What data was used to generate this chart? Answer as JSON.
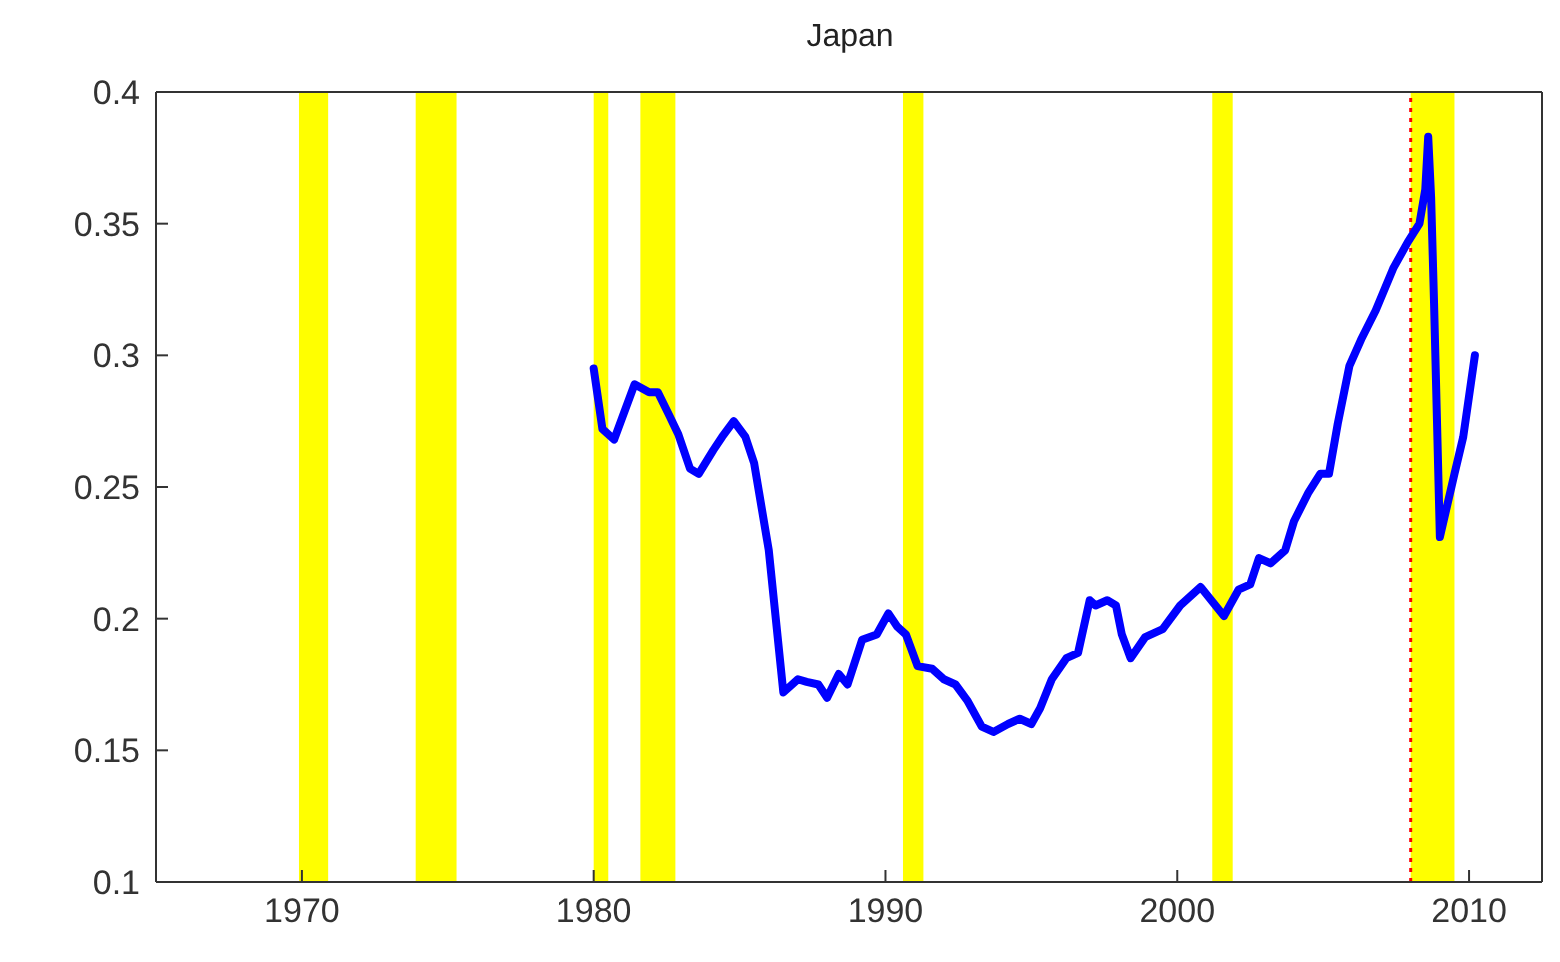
{
  "chart_data": {
    "type": "line",
    "title": "Japan",
    "xlim": [
      1965,
      2012.5
    ],
    "xticks": [
      1970,
      1980,
      1990,
      2000,
      2010
    ],
    "ylim": [
      0.1,
      0.4
    ],
    "yticks": [
      0.1,
      0.15,
      0.2,
      0.25,
      0.3,
      0.35,
      0.4
    ],
    "grid": false,
    "legend": false,
    "marker": "none",
    "line_style": "solid",
    "series": [
      {
        "color": "#0000ff",
        "x": [
          1980.0,
          1980.3,
          1980.7,
          1981.0,
          1981.4,
          1981.9,
          1982.2,
          1982.6,
          1982.9,
          1983.3,
          1983.6,
          1984.1,
          1984.4,
          1984.8,
          1985.2,
          1985.5,
          1986.0,
          1986.5,
          1987.0,
          1987.3,
          1987.7,
          1988.0,
          1988.4,
          1988.7,
          1989.2,
          1989.7,
          1990.1,
          1990.4,
          1990.7,
          1991.1,
          1991.6,
          1992.0,
          1992.4,
          1992.8,
          1993.3,
          1993.7,
          1994.2,
          1994.6,
          1995.0,
          1995.3,
          1995.7,
          1996.2,
          1996.6,
          1997.0,
          1997.2,
          1997.6,
          1997.9,
          1998.1,
          1998.4,
          1998.9,
          1999.5,
          2000.1,
          2000.8,
          2001.6,
          2002.1,
          2002.5,
          2002.8,
          2003.2,
          2003.7,
          2004.0,
          2004.5,
          2004.9,
          2005.2,
          2005.5,
          2005.9,
          2006.3,
          2006.8,
          2007.4,
          2007.9,
          2008.3,
          2008.5,
          2008.6,
          2008.7,
          2008.8,
          2009.0,
          2009.5,
          2009.8,
          2010.2
        ],
        "values": [
          0.295,
          0.272,
          0.268,
          0.277,
          0.289,
          0.286,
          0.286,
          0.277,
          0.27,
          0.257,
          0.255,
          0.264,
          0.269,
          0.275,
          0.269,
          0.259,
          0.226,
          0.172,
          0.177,
          0.176,
          0.175,
          0.17,
          0.179,
          0.175,
          0.192,
          0.194,
          0.202,
          0.197,
          0.194,
          0.182,
          0.181,
          0.177,
          0.175,
          0.169,
          0.159,
          0.157,
          0.16,
          0.162,
          0.16,
          0.166,
          0.177,
          0.185,
          0.187,
          0.207,
          0.205,
          0.207,
          0.205,
          0.194,
          0.185,
          0.193,
          0.196,
          0.205,
          0.212,
          0.201,
          0.211,
          0.213,
          0.223,
          0.221,
          0.226,
          0.237,
          0.248,
          0.255,
          0.255,
          0.274,
          0.296,
          0.306,
          0.317,
          0.333,
          0.343,
          0.35,
          0.363,
          0.383,
          0.36,
          0.32,
          0.231,
          0.255,
          0.269,
          0.3
        ]
      }
    ],
    "bands": [
      {
        "axis": "x",
        "from": 1969.9,
        "to": 1970.9,
        "color": "#ffff00"
      },
      {
        "axis": "x",
        "from": 1973.9,
        "to": 1975.3,
        "color": "#ffff00"
      },
      {
        "axis": "x",
        "from": 1980.0,
        "to": 1980.5,
        "color": "#ffff00"
      },
      {
        "axis": "x",
        "from": 1981.6,
        "to": 1982.8,
        "color": "#ffff00"
      },
      {
        "axis": "x",
        "from": 1990.6,
        "to": 1991.3,
        "color": "#ffff00"
      },
      {
        "axis": "x",
        "from": 2001.2,
        "to": 2001.9,
        "color": "#ffff00"
      },
      {
        "axis": "x",
        "from": 2008.0,
        "to": 2009.5,
        "color": "#ffff00"
      }
    ],
    "ref_lines": [
      {
        "axis": "x",
        "value": 2008.0,
        "color": "#ff0000",
        "line_style": "dotted"
      }
    ]
  }
}
